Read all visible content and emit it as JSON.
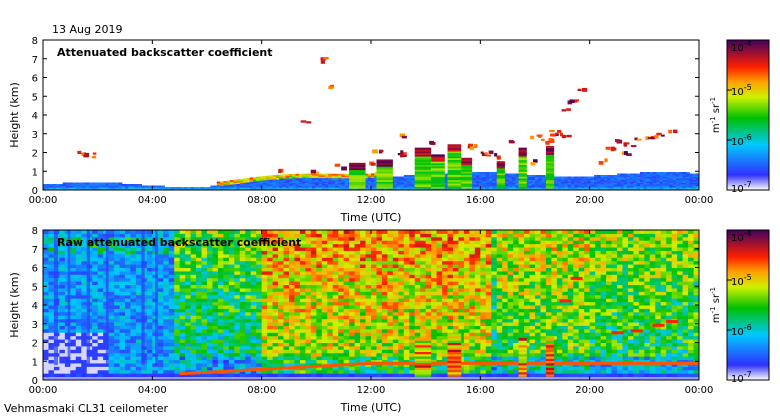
{
  "date": "13 Aug 2019",
  "footer": "Vehmasmaki CL31 ceilometer",
  "chart_data": [
    {
      "type": "heatmap",
      "title": "Attenuated backscatter coefficient",
      "xlabel": "Time (UTC)",
      "ylabel": "Height (km)",
      "xlim": [
        0,
        24
      ],
      "ylim": [
        0,
        8
      ],
      "x_ticks": [
        "00:00",
        "04:00",
        "08:00",
        "12:00",
        "16:00",
        "20:00",
        "00:00"
      ],
      "y_ticks": [
        "0",
        "1",
        "2",
        "3",
        "4",
        "5",
        "6",
        "7",
        "8"
      ],
      "colorbar": {
        "scale": "log",
        "range": [
          1e-07,
          0.0001
        ],
        "labels": [
          "10-7",
          "10-6",
          "10-5",
          "10-4"
        ],
        "unit": "m-1 sr-1"
      },
      "features": [
        {
          "name": "boundary-layer",
          "x_range": [
            0,
            24
          ],
          "height_km": [
            0,
            0.4
          ],
          "level": "low"
        },
        {
          "name": "aerosol-layer-top",
          "x_range": [
            6.5,
            12
          ],
          "height_km": [
            0.4,
            1.0
          ],
          "level": "high"
        },
        {
          "name": "cloud-tops",
          "x_range": [
            12,
            19
          ],
          "height_km": [
            0.5,
            3.0
          ],
          "level": "high"
        },
        {
          "name": "elevated-layer",
          "x_range": [
            20,
            23
          ],
          "height_km": [
            2.0,
            3.2
          ],
          "level": "high"
        }
      ]
    },
    {
      "type": "heatmap",
      "title": "Raw attenuated backscatter coefficient",
      "xlabel": "Time (UTC)",
      "ylabel": "Height (km)",
      "xlim": [
        0,
        24
      ],
      "ylim": [
        0,
        8
      ],
      "x_ticks": [
        "00:00",
        "04:00",
        "08:00",
        "12:00",
        "16:00",
        "20:00",
        "00:00"
      ],
      "y_ticks": [
        "0",
        "1",
        "2",
        "3",
        "4",
        "5",
        "6",
        "7",
        "8"
      ],
      "colorbar": {
        "scale": "log",
        "range": [
          1e-07,
          0.0001
        ],
        "labels": [
          "10-7",
          "10-6",
          "10-5",
          "10-4"
        ],
        "unit": "m-1 sr-1"
      },
      "features": [
        {
          "name": "low-signal-night",
          "x_range": [
            0,
            5
          ],
          "height_km": [
            0,
            8
          ],
          "level": "low"
        },
        {
          "name": "noise-daytime",
          "x_range": [
            5,
            24
          ],
          "height_km": [
            1,
            8
          ],
          "level": "medium"
        },
        {
          "name": "peak-noise",
          "x_range": [
            8,
            16
          ],
          "height_km": [
            4,
            8
          ],
          "level": "high"
        }
      ]
    }
  ]
}
